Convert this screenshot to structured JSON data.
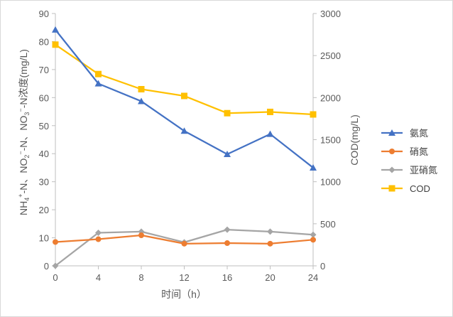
{
  "chart_data": {
    "type": "line",
    "title": "",
    "x": [
      0,
      4,
      8,
      12,
      16,
      20,
      24
    ],
    "xlabel": "时间（h）",
    "ylabel_left": "NH4+-N、NO2−-N、NO3−-N浓度(mg/L)",
    "ylabel_right": "COD(mg/L)",
    "ylim_left": [
      0,
      90
    ],
    "ylim_right": [
      0,
      3000
    ],
    "x_ticks": [
      "0",
      "4",
      "8",
      "12",
      "16",
      "20",
      "24"
    ],
    "y_ticks_left": [
      "0",
      "10",
      "20",
      "30",
      "40",
      "50",
      "60",
      "70",
      "80",
      "90"
    ],
    "y_ticks_right": [
      "0",
      "500",
      "1000",
      "1500",
      "2000",
      "2500",
      "3000"
    ],
    "grid": false,
    "legend_position": "right",
    "series": [
      {
        "name": "氨氮",
        "axis": "left",
        "color": "#4472C4",
        "marker": "triangle",
        "values": [
          84.2,
          65.0,
          58.7,
          48.1,
          39.8,
          47.0,
          35.0
        ]
      },
      {
        "name": "硝氮",
        "axis": "left",
        "color": "#ED7D31",
        "marker": "circle",
        "values": [
          8.5,
          9.5,
          10.9,
          7.9,
          8.1,
          7.9,
          9.3
        ]
      },
      {
        "name": "亚硝氮",
        "axis": "left",
        "color": "#A5A5A5",
        "marker": "diamond",
        "values": [
          0.0,
          11.8,
          12.2,
          8.4,
          12.9,
          12.2,
          11.1
        ]
      },
      {
        "name": "COD",
        "axis": "right",
        "color": "#FFC000",
        "marker": "square",
        "values": [
          2630,
          2280,
          2100,
          2020,
          1815,
          1830,
          1800
        ]
      }
    ]
  }
}
